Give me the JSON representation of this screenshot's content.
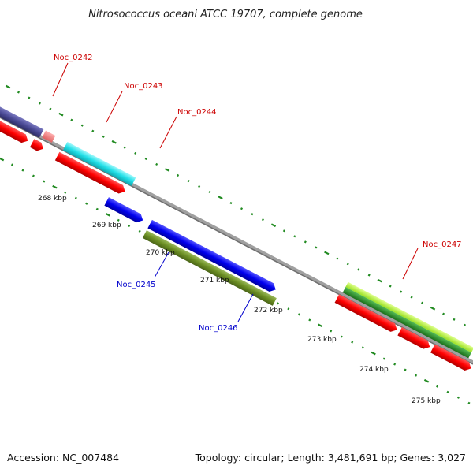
{
  "title": "Nitrosococcus oceani ATCC 19707, complete genome",
  "footer": {
    "accession": "Accession: NC_007484",
    "topology": "Topology: circular; Length: 3,481,691 bp; Genes: 3,027"
  },
  "ticks": [
    "268 kbp",
    "269 kbp",
    "270 kbp",
    "271 kbp",
    "272 kbp",
    "273 kbp",
    "274 kbp",
    "275 kbp"
  ],
  "genes": [
    {
      "id": "Noc_0242",
      "label_color": "red"
    },
    {
      "id": "Noc_0243",
      "label_color": "red"
    },
    {
      "id": "Noc_0244",
      "label_color": "red"
    },
    {
      "id": "Noc_0245",
      "label_color": "blue"
    },
    {
      "id": "Noc_0246",
      "label_color": "blue"
    },
    {
      "id": "Noc_0247",
      "label_color": "red"
    }
  ],
  "colors": {
    "cds": "#ff0000",
    "navy": "#4b4a96",
    "pink": "#f08080",
    "cyan": "#22e0e8",
    "blue": "#0000ee",
    "olive": "#6b8e23",
    "lime": "#adff2f",
    "green": "#228b22",
    "backbone": "#888888",
    "ticks": "#228b22"
  }
}
